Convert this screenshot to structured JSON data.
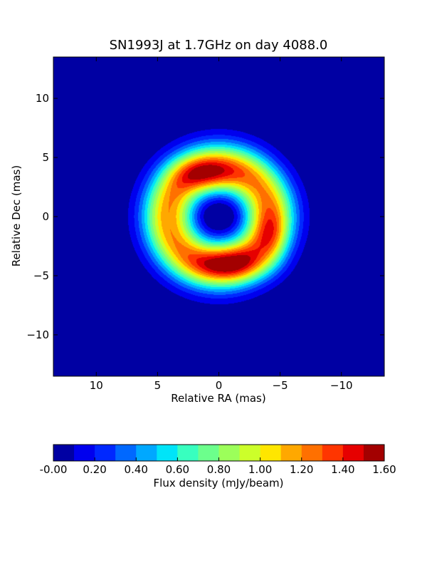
{
  "chart_data": {
    "type": "heatmap",
    "subtype": "filled-contour",
    "title": "SN1993J at 1.7GHz on day 4088.0",
    "xlabel": "Relative RA (mas)",
    "ylabel": "Relative Dec (mas)",
    "xlim": [
      13.5,
      -13.5
    ],
    "ylim": [
      -13.5,
      13.5
    ],
    "x_ticks": [
      10,
      5,
      0,
      -5,
      -10
    ],
    "x_tick_labels": [
      "10",
      "5",
      "0",
      "−5",
      "−10"
    ],
    "y_ticks": [
      10,
      5,
      0,
      -5,
      -10
    ],
    "y_tick_labels": [
      "10",
      "5",
      "0",
      "−5",
      "−10"
    ],
    "grid": false,
    "colorbar": {
      "label": "Flux density (mJy/beam)",
      "orientation": "horizontal",
      "levels": [
        0.0,
        0.1,
        0.2,
        0.3,
        0.4,
        0.5,
        0.6,
        0.7,
        0.8,
        0.9,
        1.0,
        1.1,
        1.2,
        1.3,
        1.4,
        1.5,
        1.6
      ],
      "tick_values": [
        0.0,
        0.2,
        0.4,
        0.6,
        0.8,
        1.0,
        1.2,
        1.4,
        1.6
      ],
      "tick_labels": [
        "-0.00",
        "0.20",
        "0.40",
        "0.60",
        "0.80",
        "1.00",
        "1.20",
        "1.40",
        "1.60"
      ],
      "colors": [
        "#0000a3",
        "#0000ee",
        "#0028ff",
        "#0068ff",
        "#00a8ff",
        "#00e4f8",
        "#38ffbf",
        "#6cff8c",
        "#9cff5a",
        "#ccff2a",
        "#ffe600",
        "#ffa800",
        "#ff7000",
        "#ff3500",
        "#e60000",
        "#a30000"
      ]
    },
    "source_model": {
      "description": "ring-shaped radio shell, brightest lobes north-east and south, central dip",
      "background": 0.0,
      "shell": {
        "amplitude": 1.2,
        "radius": 4.1,
        "width": 2.1
      },
      "blobs": [
        {
          "x": 1.0,
          "y": 3.6,
          "amp": 0.45,
          "sx": 1.8,
          "sy": 1.0
        },
        {
          "x": -0.8,
          "y": -4.0,
          "amp": 0.5,
          "sx": 2.0,
          "sy": 1.0
        },
        {
          "x": -4.3,
          "y": -1.5,
          "amp": 0.28,
          "sx": 0.9,
          "sy": 1.6
        },
        {
          "x": 0.0,
          "y": 0.0,
          "amp": -0.15,
          "sx": 1.2,
          "sy": 1.0
        }
      ]
    }
  }
}
